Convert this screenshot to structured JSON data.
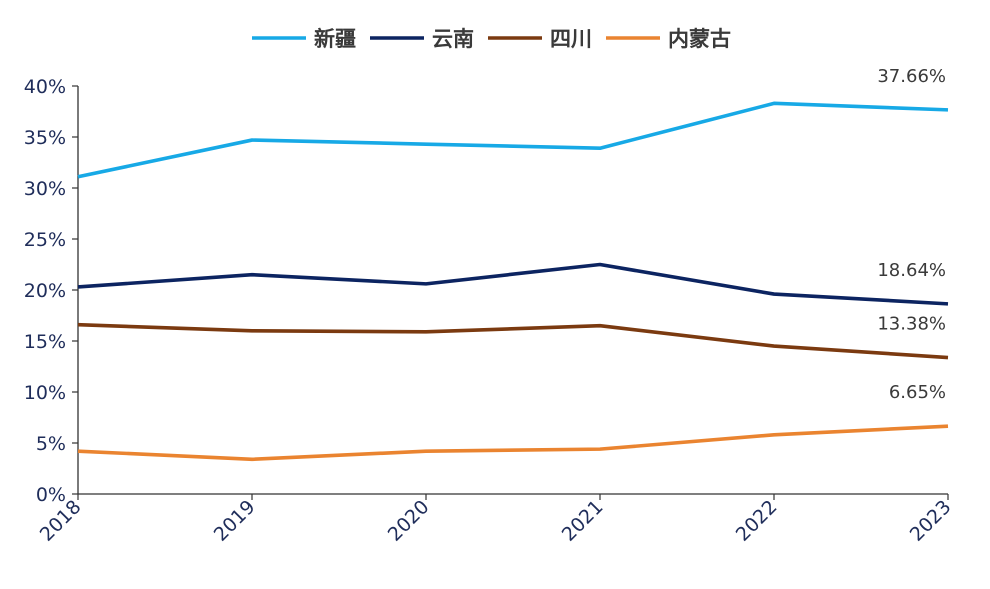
{
  "chart_data": {
    "type": "line",
    "title": "",
    "xlabel": "",
    "ylabel": "",
    "categories": [
      "2018",
      "2019",
      "2020",
      "2021",
      "2022",
      "2023"
    ],
    "ylim": [
      0,
      40
    ],
    "y_ticks": [
      "0%",
      "5%",
      "10%",
      "15%",
      "20%",
      "25%",
      "30%",
      "35%",
      "40%"
    ],
    "grid": false,
    "legend_position": "top-center",
    "series": [
      {
        "name": "新疆",
        "color": "#17a9e6",
        "values": [
          31.1,
          34.7,
          34.3,
          33.9,
          38.3,
          37.66
        ]
      },
      {
        "name": "云南",
        "color": "#0c2461",
        "values": [
          20.3,
          21.5,
          20.6,
          22.5,
          19.6,
          18.64
        ]
      },
      {
        "name": "四川",
        "color": "#7b3a10",
        "values": [
          16.6,
          16.0,
          15.9,
          16.5,
          14.5,
          13.38
        ]
      },
      {
        "name": "内蒙古",
        "color": "#ea8430",
        "values": [
          4.2,
          3.4,
          4.2,
          4.4,
          5.8,
          6.65
        ]
      }
    ],
    "end_labels": [
      "37.66%",
      "18.64%",
      "13.38%",
      "6.65%"
    ]
  }
}
